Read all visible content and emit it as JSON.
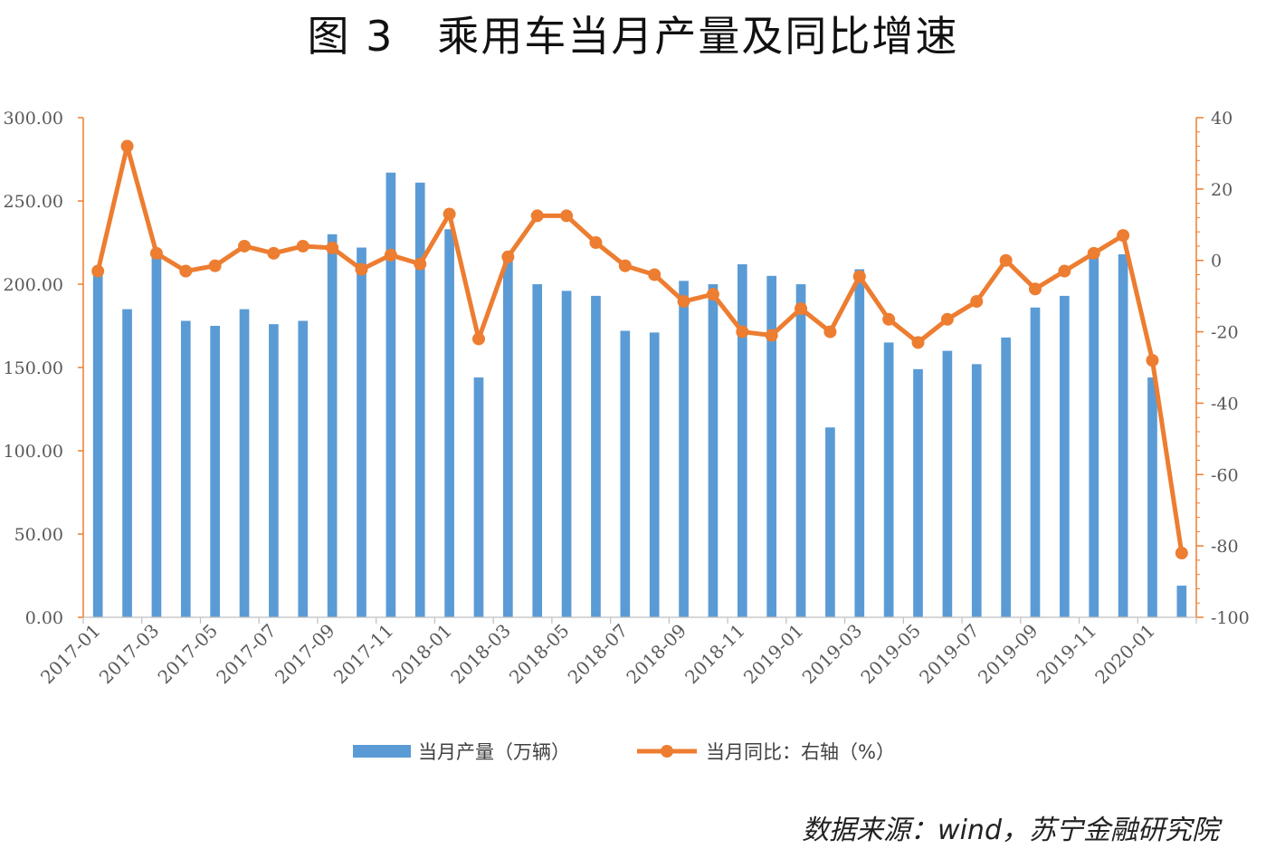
{
  "title": "图 3　乘用车当月产量及同比增速",
  "source": "数据来源：wind，苏宁金融研究院",
  "colors": {
    "bar": "#5B9BD5",
    "line": "#ED7D31",
    "axis": "#ED7D31",
    "text": "#595959"
  },
  "chart_data": {
    "type": "bar+line",
    "x": [
      "2017-01",
      "2017-02",
      "2017-03",
      "2017-04",
      "2017-05",
      "2017-06",
      "2017-07",
      "2017-08",
      "2017-09",
      "2017-10",
      "2017-11",
      "2017-12",
      "2018-01",
      "2018-02",
      "2018-03",
      "2018-04",
      "2018-05",
      "2018-06",
      "2018-07",
      "2018-08",
      "2018-09",
      "2018-10",
      "2018-11",
      "2018-12",
      "2019-01",
      "2019-02",
      "2019-03",
      "2019-04",
      "2019-05",
      "2019-06",
      "2019-07",
      "2019-08",
      "2019-09",
      "2019-10",
      "2019-11",
      "2019-12",
      "2020-01",
      "2020-02"
    ],
    "x_tick_labels": [
      "2017-01",
      "2017-03",
      "2017-05",
      "2017-07",
      "2017-09",
      "2017-11",
      "2018-01",
      "2018-03",
      "2018-05",
      "2018-07",
      "2018-09",
      "2018-11",
      "2019-01",
      "2019-03",
      "2019-05",
      "2019-07",
      "2019-09",
      "2019-11",
      "2020-01"
    ],
    "series": [
      {
        "name": "当月产量（万辆）",
        "type": "bar",
        "axis": "left",
        "values": [
          207,
          185,
          218,
          178,
          175,
          185,
          176,
          178,
          230,
          222,
          267,
          261,
          233,
          144,
          218,
          200,
          196,
          193,
          172,
          171,
          202,
          200,
          212,
          205,
          200,
          114,
          209,
          165,
          149,
          160,
          152,
          168,
          186,
          193,
          216,
          218,
          144,
          19
        ]
      },
      {
        "name": "当月同比：右轴（%）",
        "type": "line",
        "axis": "right",
        "values": [
          -3,
          32,
          2,
          -3,
          -1.5,
          4,
          2,
          4,
          3.5,
          -2.5,
          1.5,
          -1,
          13,
          -22,
          1,
          12.5,
          12.5,
          5,
          -1.5,
          -4,
          -11.5,
          -9.5,
          -20,
          -21,
          -13.5,
          -20,
          -4.5,
          -16.5,
          -23,
          -16.5,
          -11.5,
          0,
          -8,
          -3,
          2,
          7,
          -28,
          -82
        ]
      }
    ],
    "y_left": {
      "min": 0,
      "max": 300,
      "ticks": [
        "0.00",
        "50.00",
        "100.00",
        "150.00",
        "200.00",
        "250.00",
        "300.00"
      ]
    },
    "y_right": {
      "min": -100,
      "max": 40,
      "ticks": [
        "-100",
        "-80",
        "-60",
        "-40",
        "-20",
        "0",
        "20",
        "40"
      ]
    },
    "legend_position": "bottom",
    "grid": false
  }
}
